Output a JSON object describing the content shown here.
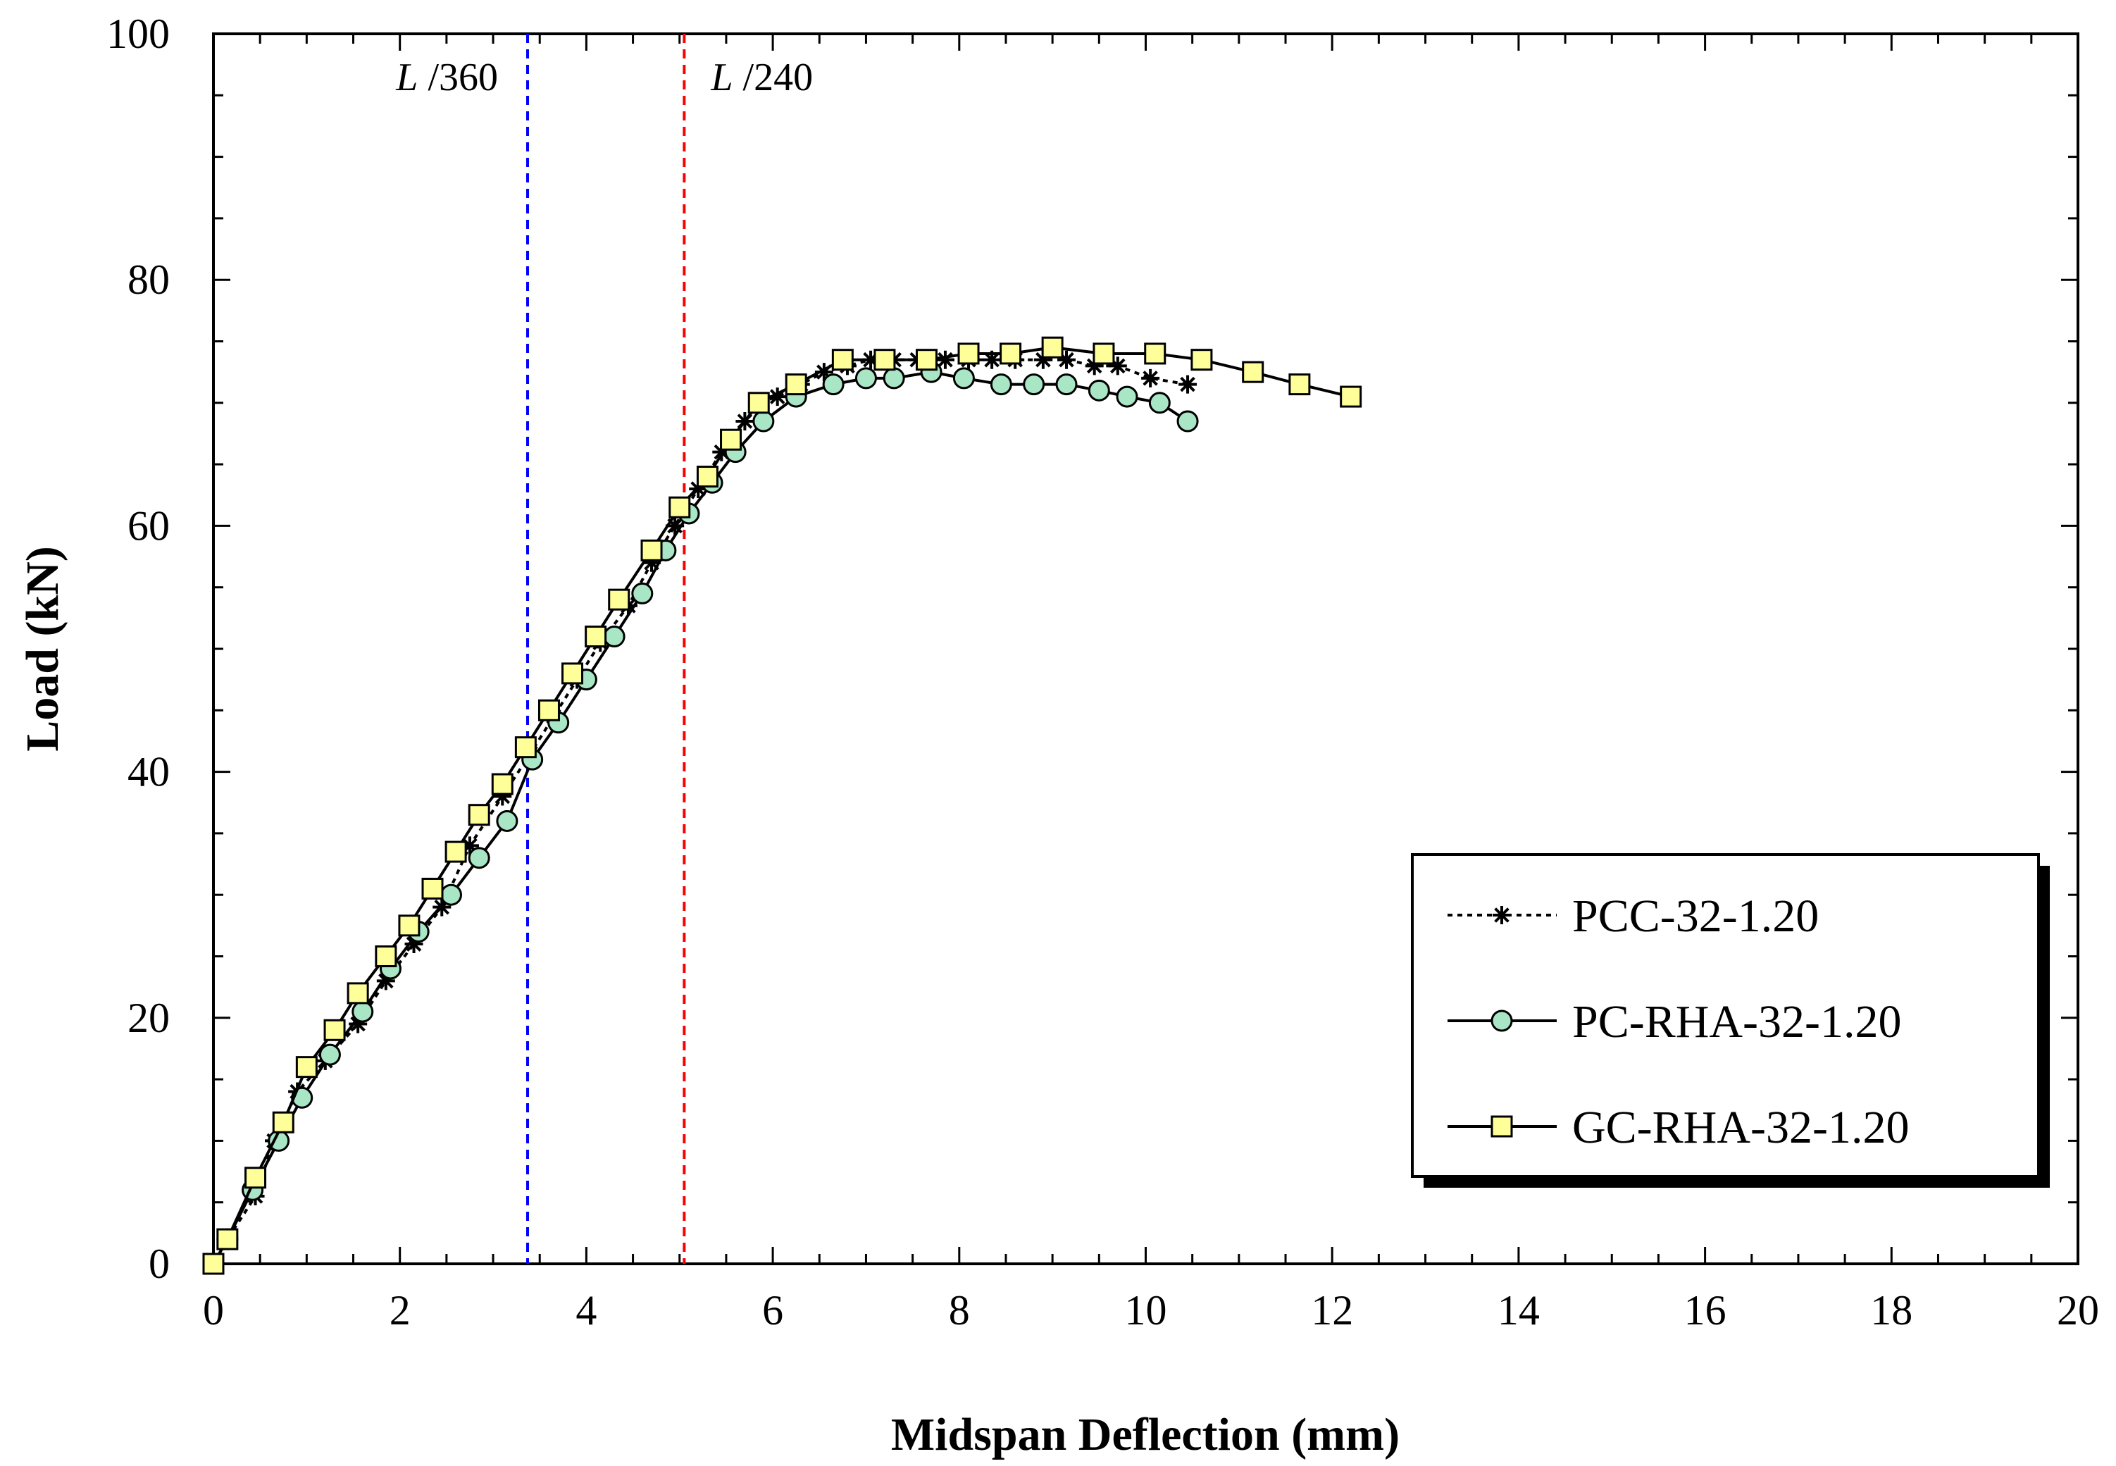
{
  "chart_data": {
    "type": "line",
    "title": "",
    "xlabel": "Midspan Deflection (mm)",
    "ylabel": "Load (kN)",
    "xlim": [
      0,
      20
    ],
    "ylim": [
      0,
      100
    ],
    "x_ticks": [
      0,
      2,
      4,
      6,
      8,
      10,
      12,
      14,
      16,
      18,
      20
    ],
    "y_ticks": [
      0,
      20,
      40,
      60,
      80,
      100
    ],
    "x_tick_labels": [
      "0",
      "2",
      "4",
      "6",
      "8",
      "10",
      "12",
      "14",
      "16",
      "18",
      "20"
    ],
    "y_tick_labels": [
      "0",
      "20",
      "40",
      "60",
      "80",
      "100"
    ],
    "grid": false,
    "legend_position": "bottom-right",
    "reference_lines": [
      {
        "label_italic": "L",
        "label_rest": " /360",
        "x": 3.37,
        "color": "#0000ff"
      },
      {
        "label_italic": "L",
        "label_rest": " /240",
        "x": 5.05,
        "color": "#ff0000"
      }
    ],
    "series": [
      {
        "name": "PCC-32-1.20",
        "marker": "asterisk",
        "line": "dotted",
        "fill": "none",
        "x": [
          0,
          0.15,
          0.45,
          0.65,
          0.9,
          1.2,
          1.55,
          1.85,
          2.15,
          2.45,
          2.75,
          3.1,
          3.4,
          3.65,
          3.9,
          4.15,
          4.45,
          4.7,
          4.95,
          5.2,
          5.45,
          5.7,
          5.85,
          6.05,
          6.3,
          6.55,
          6.8,
          7.05,
          7.3,
          7.55,
          7.85,
          8.1,
          8.35,
          8.6,
          8.9,
          9.15,
          9.45,
          9.7,
          10.05,
          10.45
        ],
        "y": [
          0,
          2,
          5.5,
          10,
          14,
          16.5,
          19.5,
          23,
          26,
          29,
          34,
          38,
          41.5,
          44.5,
          47.5,
          50.5,
          53.5,
          57,
          60,
          63,
          66,
          68.5,
          70,
          70.5,
          71.5,
          72.5,
          73,
          73.5,
          73.5,
          73.5,
          73.5,
          73.5,
          73.5,
          73.5,
          73.5,
          73.5,
          73,
          73,
          72,
          71.5
        ]
      },
      {
        "name": "PC-RHA-32-1.20",
        "marker": "circle",
        "line": "solid",
        "fill": "#a8e6c6",
        "x": [
          0,
          0.15,
          0.42,
          0.7,
          0.95,
          1.25,
          1.6,
          1.9,
          2.2,
          2.55,
          2.85,
          3.15,
          3.42,
          3.7,
          4.0,
          4.3,
          4.6,
          4.85,
          5.1,
          5.35,
          5.6,
          5.9,
          6.25,
          6.65,
          7.0,
          7.3,
          7.7,
          8.05,
          8.45,
          8.8,
          9.15,
          9.5,
          9.8,
          10.15,
          10.45
        ],
        "y": [
          0,
          2,
          6,
          10,
          13.5,
          17,
          20.5,
          24,
          27,
          30,
          33,
          36,
          41,
          44,
          47.5,
          51,
          54.5,
          58,
          61,
          63.5,
          66,
          68.5,
          70.5,
          71.5,
          72,
          72,
          72.5,
          72,
          71.5,
          71.5,
          71.5,
          71,
          70.5,
          70,
          68.5
        ]
      },
      {
        "name": "GC-RHA-32-1.20",
        "marker": "square",
        "line": "solid",
        "fill": "#ffff99",
        "x": [
          0,
          0.15,
          0.45,
          0.75,
          1.0,
          1.3,
          1.55,
          1.85,
          2.1,
          2.35,
          2.6,
          2.85,
          3.1,
          3.35,
          3.6,
          3.85,
          4.1,
          4.35,
          4.7,
          5.0,
          5.3,
          5.55,
          5.85,
          6.25,
          6.75,
          7.2,
          7.65,
          8.1,
          8.55,
          9.0,
          9.55,
          10.1,
          10.6,
          11.15,
          11.65,
          12.2
        ],
        "y": [
          0,
          2,
          7,
          11.5,
          16,
          19,
          22,
          25,
          27.5,
          30.5,
          33.5,
          36.5,
          39,
          42,
          45,
          48,
          51,
          54,
          58,
          61.5,
          64,
          67,
          70,
          71.5,
          73.5,
          73.5,
          73.5,
          74,
          74,
          74.5,
          74,
          74,
          73.5,
          72.5,
          71.5,
          70.5
        ]
      }
    ]
  }
}
